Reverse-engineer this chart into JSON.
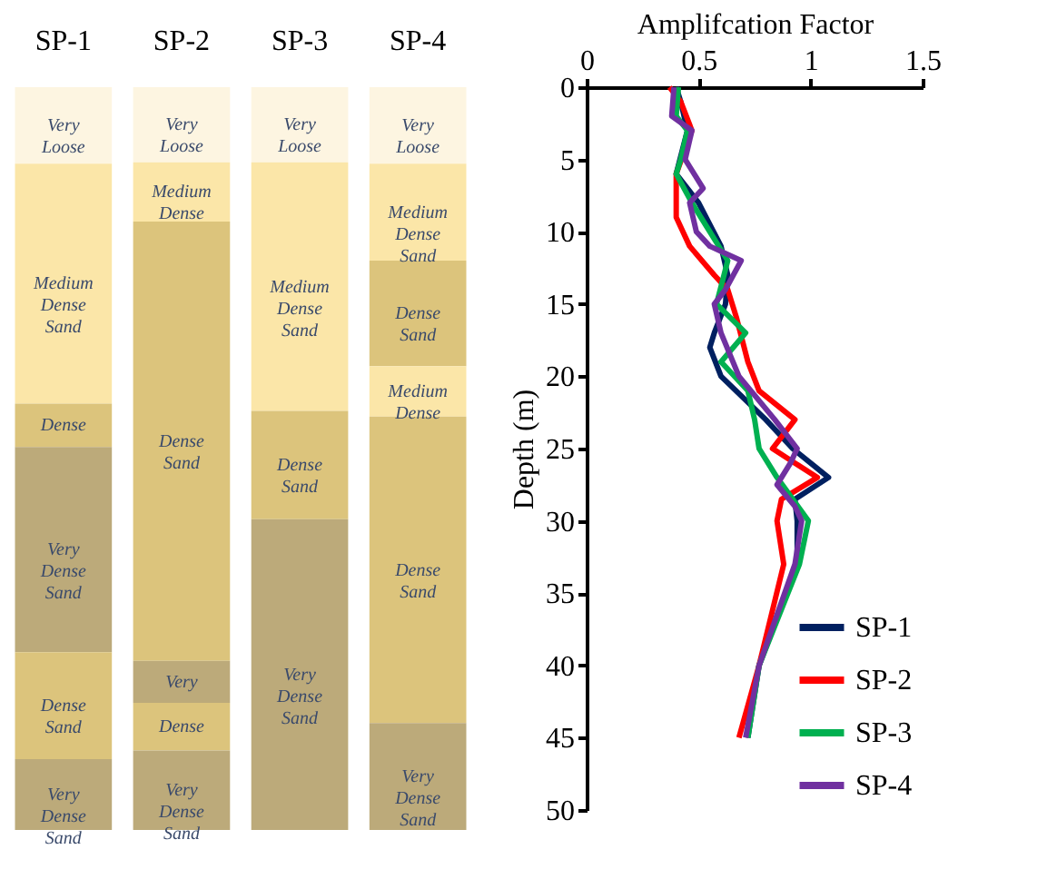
{
  "chart_data": [
    {
      "type": "bar",
      "stacked": true,
      "tick_labels": "x",
      "ylim": [
        51.4,
        0
      ],
      "yticks": [
        0,
        5,
        10,
        15,
        20,
        25,
        30,
        35,
        40,
        45,
        50
      ],
      "categories": [
        "SP-1",
        "SP-2",
        "SP-3",
        "SP-4"
      ],
      "series": [
        {
          "values": [
            5.3,
            5.2,
            5.2,
            5.3
          ],
          "colors": [
            "#fdf5e1",
            "#fdf5e1",
            "#fdf5e1",
            "#fdf5e1"
          ],
          "value_labels": [
            "Very Loose",
            "Very Loose",
            "Very Loose",
            "Very Loose"
          ]
        },
        {
          "values": [
            16.6,
            4.1,
            17.2,
            6.7
          ],
          "colors": [
            "#fbe6a8",
            "#fbe6a8",
            "#fbe6a8",
            "#fbe6a8"
          ],
          "value_labels": [
            "Medium Dense Sand",
            "Medium Dense",
            "Medium Dense Sand",
            "Medium Dense Sand"
          ]
        },
        {
          "values": [
            3.0,
            30.4,
            7.5,
            7.3
          ],
          "colors": [
            "#dcc47c",
            "#dcc47c",
            "#dcc47c",
            "#dcc47c"
          ],
          "value_labels": [
            "Dense",
            "Dense Sand",
            "Dense Sand",
            "Dense Sand"
          ]
        },
        {
          "values": [
            14.2,
            2.9,
            21.5,
            3.5
          ],
          "colors": [
            "#bcaa7a",
            "#bcaa7a",
            "#bcaa7a",
            "#fbe6a8"
          ],
          "value_labels": [
            "Very Dense Sand",
            "Very",
            "Very Dense Sand",
            "Medium Dense"
          ]
        },
        {
          "values": [
            7.4,
            3.3,
            null,
            21.2
          ],
          "colors": [
            "#dcc47c",
            "#dcc47c",
            null,
            "#dcc47c"
          ],
          "value_labels": [
            "Dense Sand",
            "Dense",
            null,
            "Dense Sand"
          ]
        },
        {
          "values": [
            4.9,
            5.5,
            null,
            7.4
          ],
          "colors": [
            "#bcaa7a",
            "#bcaa7a",
            null,
            "#bcaa7a"
          ],
          "value_labels": [
            "Very Dense Sand",
            "Very Dense Sand",
            null,
            "Very Dense Sand"
          ]
        }
      ]
    },
    {
      "type": "line",
      "xlabel": "Amplifcation Factor",
      "ylabel": "Depth (m)",
      "xlim": [
        0,
        1.5
      ],
      "xticks": [
        0,
        0.5,
        1,
        1.5
      ],
      "ylim": [
        50,
        0
      ],
      "yticks": [
        0,
        5,
        10,
        15,
        20,
        25,
        30,
        35,
        40,
        45,
        50
      ],
      "grid": false,
      "legend": "bottom right",
      "marker": "none",
      "line_style": "solid",
      "series": [
        {
          "name": "SP-1",
          "color": "#002060",
          "x": [
            0.4,
            0.42,
            0.45,
            0.4,
            0.5,
            0.6,
            0.63,
            0.62,
            0.57,
            0.55,
            0.6,
            0.8,
            0.92,
            1.08,
            0.93,
            0.94,
            0.94,
            0.77,
            0.72
          ],
          "values": [
            0,
            1,
            3,
            6,
            8,
            11,
            13,
            15,
            17,
            18,
            20,
            23,
            25,
            27,
            28.5,
            30,
            33,
            40,
            45
          ]
        },
        {
          "name": "SP-2",
          "color": "#ff0000",
          "x": [
            0.37,
            0.42,
            0.47,
            0.4,
            0.4,
            0.46,
            0.57,
            0.63,
            0.67,
            0.72,
            0.77,
            0.93,
            0.88,
            0.83,
            0.93,
            1.03,
            0.87,
            0.85,
            0.87,
            0.88,
            0.77,
            0.68
          ],
          "values": [
            0,
            1,
            3,
            6,
            9,
            11,
            13,
            14,
            16,
            19,
            21,
            23,
            24,
            25,
            26,
            27,
            28.5,
            30,
            32,
            33,
            40,
            45
          ]
        },
        {
          "name": "SP-3",
          "color": "#00b050",
          "x": [
            0.41,
            0.4,
            0.45,
            0.42,
            0.4,
            0.47,
            0.55,
            0.63,
            0.58,
            0.71,
            0.6,
            0.72,
            0.75,
            0.77,
            0.85,
            0.99,
            0.95,
            0.77,
            0.72
          ],
          "values": [
            0,
            2,
            3,
            5,
            6,
            8,
            10,
            12,
            15,
            17,
            19,
            21,
            23,
            25,
            27,
            30,
            33,
            40,
            45
          ]
        },
        {
          "name": "SP-4",
          "color": "#7030a0",
          "x": [
            0.39,
            0.38,
            0.47,
            0.44,
            0.52,
            0.46,
            0.49,
            0.55,
            0.69,
            0.62,
            0.57,
            0.6,
            0.68,
            0.84,
            0.94,
            0.91,
            0.85,
            0.93,
            0.96,
            0.93,
            0.77,
            0.71
          ],
          "values": [
            0,
            2,
            3,
            5,
            7,
            8,
            10,
            11,
            12,
            14,
            15,
            17,
            20,
            23,
            25,
            26,
            27.5,
            29,
            30,
            33,
            40,
            45
          ]
        }
      ]
    }
  ]
}
